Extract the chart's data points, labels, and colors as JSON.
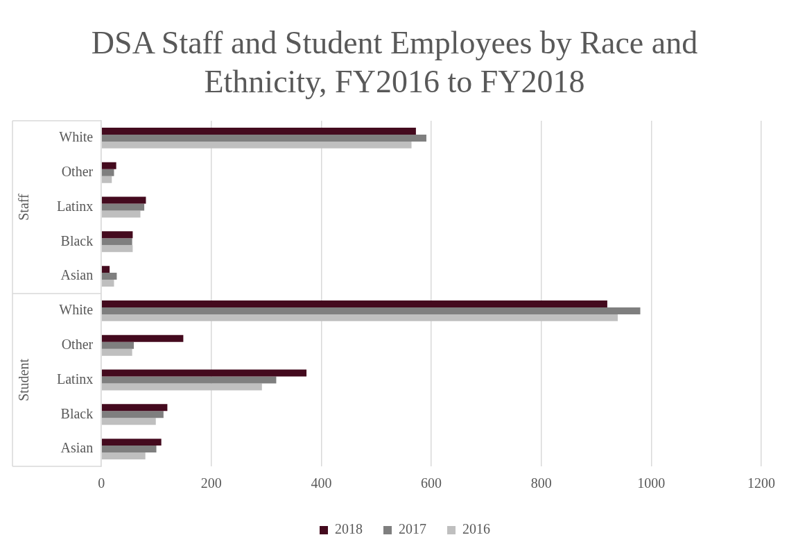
{
  "chart_data": {
    "type": "bar",
    "orientation": "horizontal",
    "title": "DSA Staff and Student Employees by Race and Ethnicity, FY2016 to FY2018",
    "categories": [
      "White",
      "Other",
      "Latinx",
      "Black",
      "Asian",
      "White",
      "Other",
      "Latinx",
      "Black",
      "Asian"
    ],
    "series": [
      {
        "name": "2018",
        "color": "#440a1e",
        "values": [
          572,
          27,
          81,
          57,
          15,
          920,
          149,
          373,
          120,
          109
        ]
      },
      {
        "name": "2017",
        "color": "#7f7f7f",
        "values": [
          591,
          23,
          78,
          56,
          28,
          980,
          59,
          318,
          113,
          100
        ]
      },
      {
        "name": "2016",
        "color": "#bfbfbf",
        "values": [
          564,
          19,
          71,
          57,
          23,
          939,
          56,
          292,
          99,
          80
        ]
      }
    ],
    "xlim": [
      0,
      1200
    ],
    "xticks": [
      0,
      200,
      400,
      600,
      800,
      1000,
      1200
    ],
    "grid": "x",
    "legend": "bottom",
    "annotations": [
      "Staff",
      "Student"
    ]
  }
}
